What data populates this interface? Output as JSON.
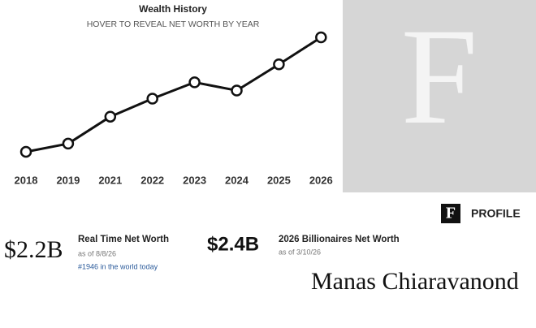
{
  "chart_data": {
    "type": "line",
    "title": "Wealth History",
    "subtitle": "HOVER TO REVEAL NET WORTH BY YEAR",
    "categories": [
      "2018",
      "2019",
      "2021",
      "2022",
      "2023",
      "2024",
      "2025",
      "2026"
    ],
    "values": [
      1.0,
      1.1,
      1.43,
      1.65,
      1.85,
      1.75,
      2.07,
      2.4
    ],
    "color": "#111111"
  },
  "brand": {
    "letter": "F",
    "label": "PROFILE",
    "name": "Manas Chiaravanond"
  },
  "stats": [
    {
      "value": "$2.2B",
      "label": "Real Time Net Worth",
      "as_of": "as of 8/8/26",
      "rank": "#1946 in the world today"
    },
    {
      "value": "$2.4B",
      "label": "2026 Billionaires Net Worth",
      "as_of": "as of 3/10/26"
    }
  ]
}
